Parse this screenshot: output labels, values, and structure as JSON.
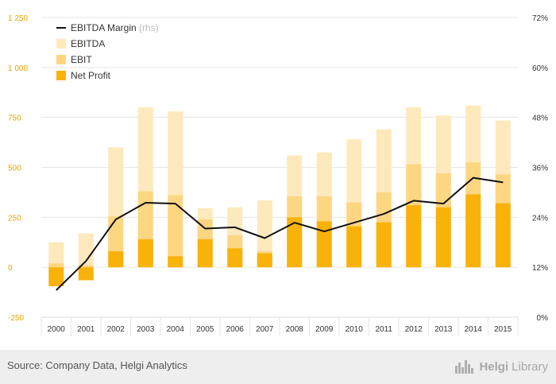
{
  "chart_data": {
    "type": "bar",
    "bar_mode": "overlay",
    "categories": [
      "2000",
      "2001",
      "2002",
      "2003",
      "2004",
      "2005",
      "2006",
      "2007",
      "2008",
      "2009",
      "2010",
      "2011",
      "2012",
      "2013",
      "2014",
      "2015"
    ],
    "series": [
      {
        "name": "EBITDA",
        "kind": "bar",
        "axis": "left",
        "color": "#fde9bb",
        "values": [
          125,
          170,
          600,
          800,
          780,
          295,
          300,
          335,
          560,
          575,
          640,
          690,
          800,
          760,
          810,
          735
        ]
      },
      {
        "name": "EBIT",
        "kind": "bar",
        "axis": "left",
        "color": "#fdd682",
        "values": [
          20,
          10,
          255,
          380,
          360,
          240,
          160,
          80,
          355,
          355,
          325,
          375,
          515,
          470,
          525,
          465
        ]
      },
      {
        "name": "Net Profit",
        "kind": "bar",
        "axis": "left",
        "color": "#f9b20a",
        "values": [
          -95,
          -65,
          80,
          140,
          55,
          140,
          95,
          70,
          250,
          230,
          205,
          225,
          310,
          300,
          365,
          320
        ]
      },
      {
        "name": "EBITDA Margin",
        "kind": "line",
        "axis": "right",
        "color": "#111111",
        "values": [
          6.5,
          13.5,
          23.5,
          27.5,
          27.3,
          21.3,
          21.6,
          19.0,
          22.7,
          20.6,
          22.7,
          24.8,
          28.0,
          27.3,
          33.5,
          32.4
        ]
      }
    ],
    "legend_note": "(rhs)",
    "y_left": {
      "min": -250,
      "max": 1250,
      "ticks": [
        -250,
        0,
        250,
        500,
        750,
        1000,
        1250
      ],
      "tick_labels": [
        "-250",
        "0",
        "250",
        "500",
        "750",
        "1 000",
        "1 250"
      ]
    },
    "y_right": {
      "min": 0,
      "max": 72,
      "ticks": [
        0,
        12,
        24,
        36,
        48,
        60,
        72
      ],
      "tick_labels": [
        "0%",
        "12%",
        "24%",
        "36%",
        "48%",
        "60%",
        "72%"
      ]
    },
    "grid": true,
    "legend_position": "top-left",
    "title": "",
    "xlabel": "",
    "ylabel": ""
  },
  "footer": {
    "source": "Source: Company Data, Helgi Analytics",
    "brand_a": "Helgi",
    "brand_b": "Library",
    "logo_icon": "city-skyline-icon"
  }
}
